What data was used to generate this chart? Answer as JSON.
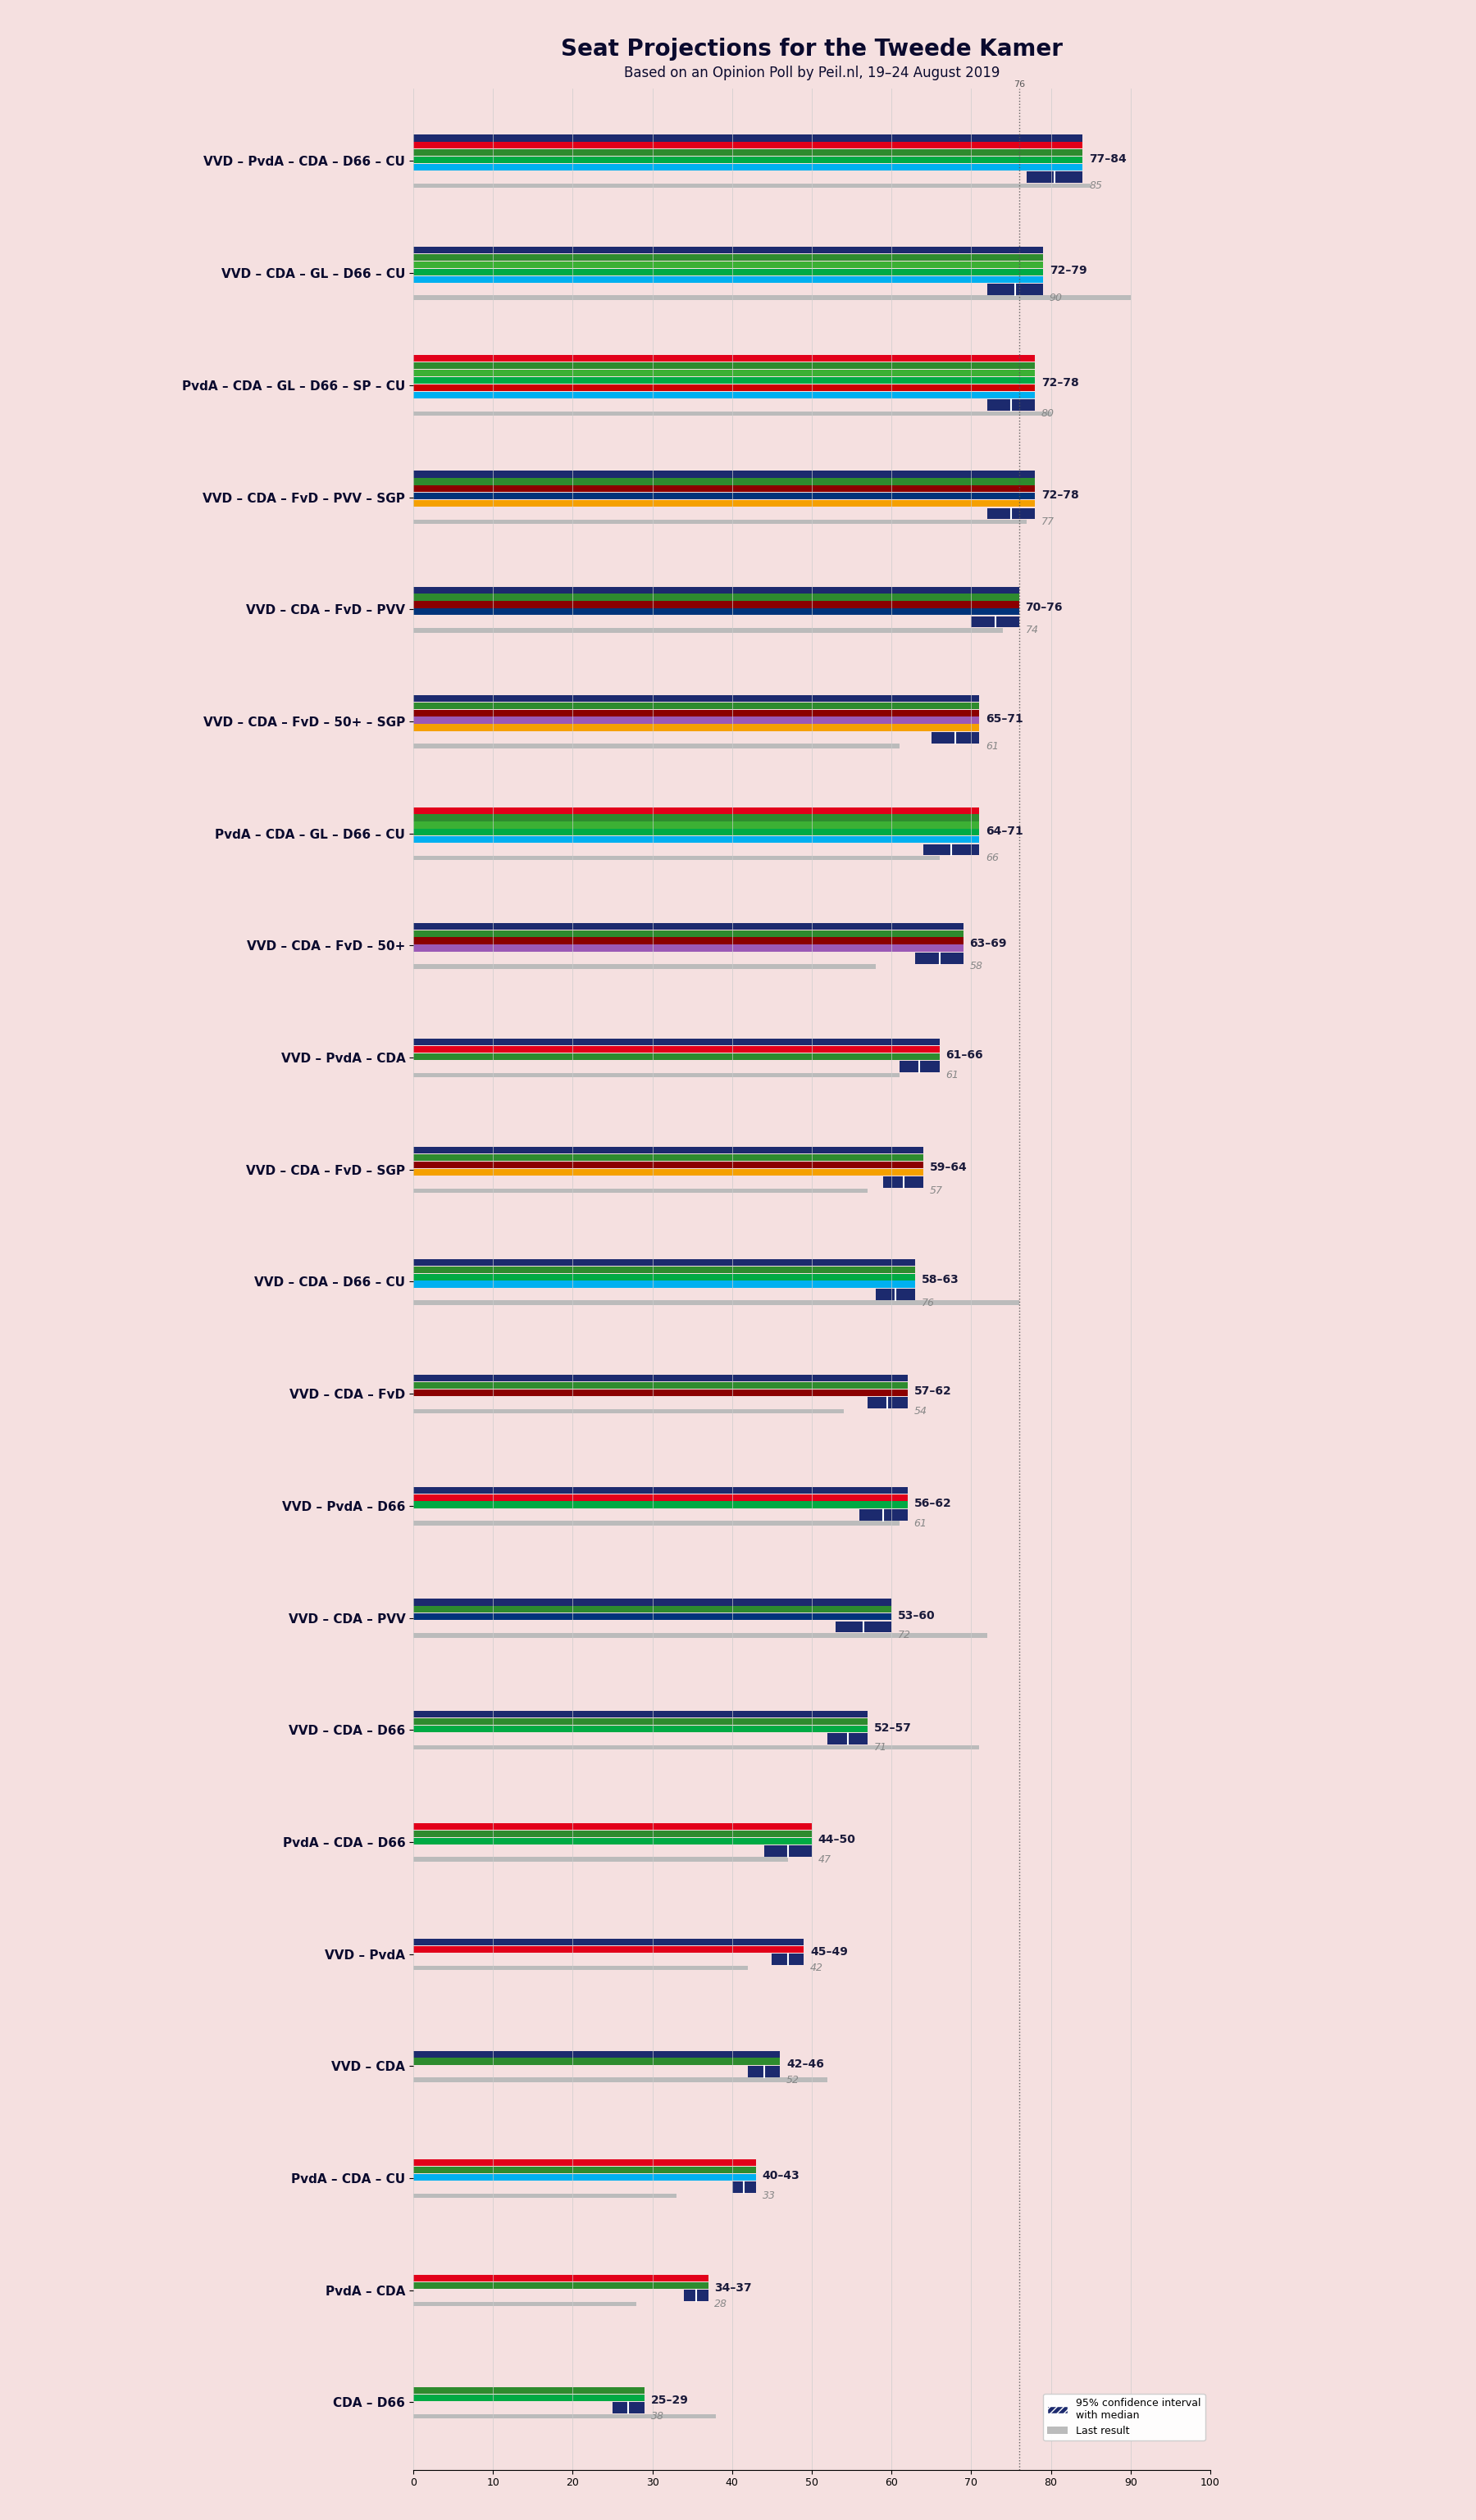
{
  "title": "Seat Projections for the Tweede Kamer",
  "subtitle": "Based on an Opinion Poll by Peil.nl, 19–24 August 2019",
  "background_color": "#f5e0e0",
  "coalitions": [
    {
      "name": "VVD – PvdA – CDA – D66 – CU",
      "underline": false,
      "parties": [
        "VVD",
        "PvdA",
        "CDA",
        "D66",
        "CU"
      ],
      "low": 77,
      "high": 84,
      "last": 85
    },
    {
      "name": "VVD – CDA – GL – D66 – CU",
      "underline": false,
      "parties": [
        "VVD",
        "CDA",
        "GL",
        "D66",
        "CU"
      ],
      "low": 72,
      "high": 79,
      "last": 90
    },
    {
      "name": "PvdA – CDA – GL – D66 – SP – CU",
      "underline": false,
      "parties": [
        "PvdA",
        "CDA",
        "GL",
        "D66",
        "SP",
        "CU"
      ],
      "low": 72,
      "high": 78,
      "last": 80
    },
    {
      "name": "VVD – CDA – FvD – PVV – SGP",
      "underline": false,
      "parties": [
        "VVD",
        "CDA",
        "FvD",
        "PVV",
        "SGP"
      ],
      "low": 72,
      "high": 78,
      "last": 77
    },
    {
      "name": "VVD – CDA – FvD – PVV",
      "underline": false,
      "parties": [
        "VVD",
        "CDA",
        "FvD",
        "PVV"
      ],
      "low": 70,
      "high": 76,
      "last": 74
    },
    {
      "name": "VVD – CDA – FvD – 50+ – SGP",
      "underline": false,
      "parties": [
        "VVD",
        "CDA",
        "FvD",
        "50+",
        "SGP"
      ],
      "low": 65,
      "high": 71,
      "last": 61
    },
    {
      "name": "PvdA – CDA – GL – D66 – CU",
      "underline": false,
      "parties": [
        "PvdA",
        "CDA",
        "GL",
        "D66",
        "CU"
      ],
      "low": 64,
      "high": 71,
      "last": 66
    },
    {
      "name": "VVD – CDA – FvD – 50+",
      "underline": false,
      "parties": [
        "VVD",
        "CDA",
        "FvD",
        "50+"
      ],
      "low": 63,
      "high": 69,
      "last": 58
    },
    {
      "name": "VVD – PvdA – CDA",
      "underline": false,
      "parties": [
        "VVD",
        "PvdA",
        "CDA"
      ],
      "low": 61,
      "high": 66,
      "last": 61
    },
    {
      "name": "VVD – CDA – FvD – SGP",
      "underline": false,
      "parties": [
        "VVD",
        "CDA",
        "FvD",
        "SGP"
      ],
      "low": 59,
      "high": 64,
      "last": 57
    },
    {
      "name": "VVD – CDA – D66 – CU",
      "underline": true,
      "parties": [
        "VVD",
        "CDA",
        "D66",
        "CU"
      ],
      "low": 58,
      "high": 63,
      "last": 76
    },
    {
      "name": "VVD – CDA – FvD",
      "underline": false,
      "parties": [
        "VVD",
        "CDA",
        "FvD"
      ],
      "low": 57,
      "high": 62,
      "last": 54
    },
    {
      "name": "VVD – PvdA – D66",
      "underline": false,
      "parties": [
        "VVD",
        "PvdA",
        "D66"
      ],
      "low": 56,
      "high": 62,
      "last": 61
    },
    {
      "name": "VVD – CDA – PVV",
      "underline": false,
      "parties": [
        "VVD",
        "CDA",
        "PVV"
      ],
      "low": 53,
      "high": 60,
      "last": 72
    },
    {
      "name": "VVD – CDA – D66",
      "underline": false,
      "parties": [
        "VVD",
        "CDA",
        "D66"
      ],
      "low": 52,
      "high": 57,
      "last": 71
    },
    {
      "name": "PvdA – CDA – D66",
      "underline": false,
      "parties": [
        "PvdA",
        "CDA",
        "D66"
      ],
      "low": 44,
      "high": 50,
      "last": 47
    },
    {
      "name": "VVD – PvdA",
      "underline": false,
      "parties": [
        "VVD",
        "PvdA"
      ],
      "low": 45,
      "high": 49,
      "last": 42
    },
    {
      "name": "VVD – CDA",
      "underline": false,
      "parties": [
        "VVD",
        "CDA"
      ],
      "low": 42,
      "high": 46,
      "last": 52
    },
    {
      "name": "PvdA – CDA – CU",
      "underline": false,
      "parties": [
        "PvdA",
        "CDA",
        "CU"
      ],
      "low": 40,
      "high": 43,
      "last": 33
    },
    {
      "name": "PvdA – CDA",
      "underline": false,
      "parties": [
        "PvdA",
        "CDA"
      ],
      "low": 34,
      "high": 37,
      "last": 28
    },
    {
      "name": "CDA – D66",
      "underline": false,
      "parties": [
        "CDA",
        "D66"
      ],
      "low": 25,
      "high": 29,
      "last": 38
    }
  ],
  "party_colors": {
    "VVD": "#1c2a6e",
    "PvdA": "#e2001a",
    "CDA": "#2e8b2e",
    "D66": "#00aa44",
    "CU": "#00b0f0",
    "GL": "#3cb034",
    "SP": "#cc0000",
    "FvD": "#8b0000",
    "PVV": "#00337a",
    "SGP": "#f5a000",
    "50+": "#9b59b6"
  },
  "majority_line": 76,
  "xlim_max": 100,
  "range_text_color": "#1a1a3a",
  "last_text_color": "#888888",
  "ci_hatch_color": "#1c2a6e",
  "last_bar_color": "#bbbbbb",
  "grid_color": "#cccccc",
  "title_fontsize": 20,
  "subtitle_fontsize": 12,
  "label_fontsize": 11,
  "range_fontsize": 10,
  "last_fontsize": 9
}
